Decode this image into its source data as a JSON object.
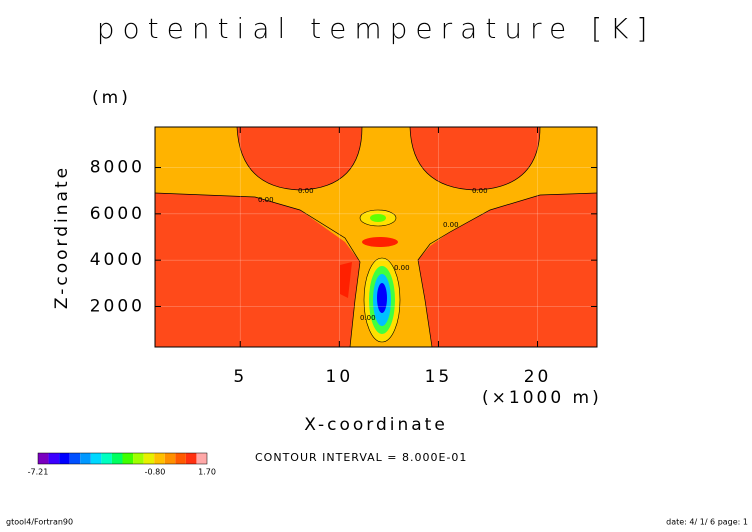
{
  "chart_data": {
    "type": "contour",
    "title": "potential temperature [K]",
    "y_unit": "(m)",
    "x_label": "X-coordinate",
    "x_unit": "(×1000 m)",
    "y_label": "Z-coordinate",
    "xlim": [
      0.7,
      23
    ],
    "ylim": [
      250,
      9750
    ],
    "xticks": [
      5,
      10,
      15,
      20
    ],
    "yticks": [
      2000,
      4000,
      6000,
      8000
    ],
    "contour_labels": [
      "0.00",
      "0.00",
      "0.00",
      "0.00",
      "0.00",
      "0.00"
    ],
    "contour_interval_text": "CONTOUR INTERVAL = 8.000E-01",
    "colorbar": {
      "colors": [
        "#7a00c0",
        "#3c00ff",
        "#0000ff",
        "#0050ff",
        "#0098ff",
        "#00d8ff",
        "#00ffc0",
        "#00ff60",
        "#40ff00",
        "#a0ff00",
        "#e8f000",
        "#ffc000",
        "#ff9000",
        "#ff5a00",
        "#ff3010",
        "#ffa8a8"
      ],
      "labels": [
        "-7.21",
        "-0.80",
        "1.70"
      ]
    },
    "footer_left": "gtool4/Fortran90",
    "footer_right": "date: 4/ 1/ 6 page: 1"
  }
}
